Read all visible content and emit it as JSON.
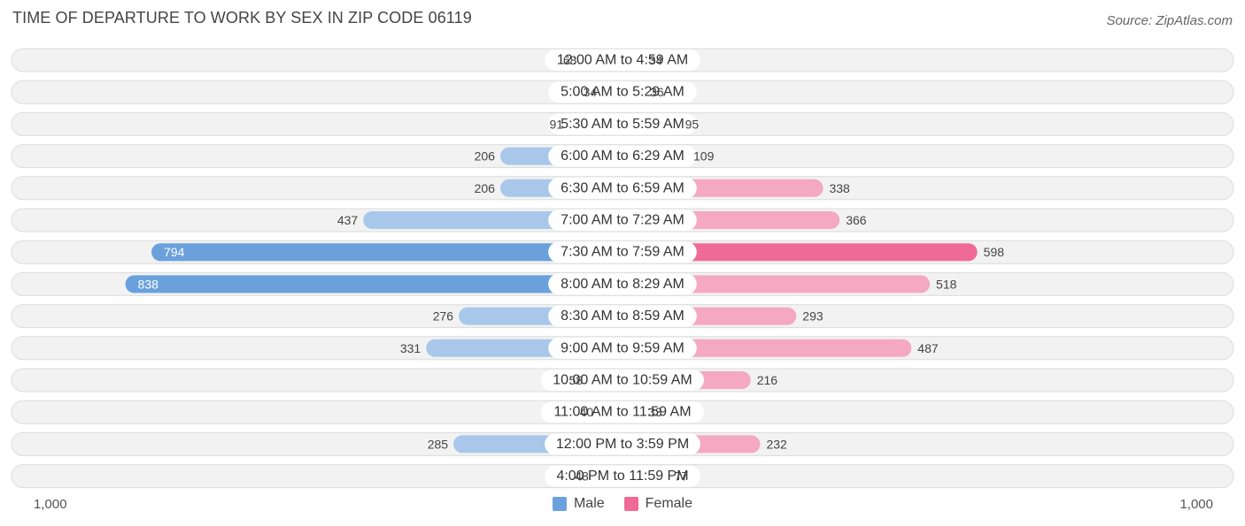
{
  "title": "TIME OF DEPARTURE TO WORK BY SEX IN ZIP CODE 06119",
  "source": "Source: ZipAtlas.com",
  "colors": {
    "male_light": "#a8c7ea",
    "male_dark": "#6aa1dc",
    "female_light": "#f5a8c1",
    "female_dark": "#f06a97"
  },
  "chart_data": {
    "type": "bar",
    "orientation": "horizontal-diverging",
    "title": "TIME OF DEPARTURE TO WORK BY SEX IN ZIP CODE 06119",
    "categories": [
      "12:00 AM to 4:59 AM",
      "5:00 AM to 5:29 AM",
      "5:30 AM to 5:59 AM",
      "6:00 AM to 6:29 AM",
      "6:30 AM to 6:59 AM",
      "7:00 AM to 7:29 AM",
      "7:30 AM to 7:59 AM",
      "8:00 AM to 8:29 AM",
      "8:30 AM to 8:59 AM",
      "9:00 AM to 9:59 AM",
      "10:00 AM to 10:59 AM",
      "11:00 AM to 11:59 AM",
      "12:00 PM to 3:59 PM",
      "4:00 PM to 11:59 PM"
    ],
    "series": [
      {
        "name": "Male",
        "values": [
          68,
          34,
          91,
          206,
          206,
          437,
          794,
          838,
          276,
          331,
          58,
          40,
          285,
          48
        ]
      },
      {
        "name": "Female",
        "values": [
          34,
          36,
          95,
          109,
          338,
          366,
          598,
          518,
          293,
          487,
          216,
          33,
          232,
          77
        ]
      }
    ],
    "xlim": [
      0,
      1000
    ],
    "axis_left_label": "1,000",
    "axis_right_label": "1,000",
    "legend": [
      "Male",
      "Female"
    ]
  }
}
